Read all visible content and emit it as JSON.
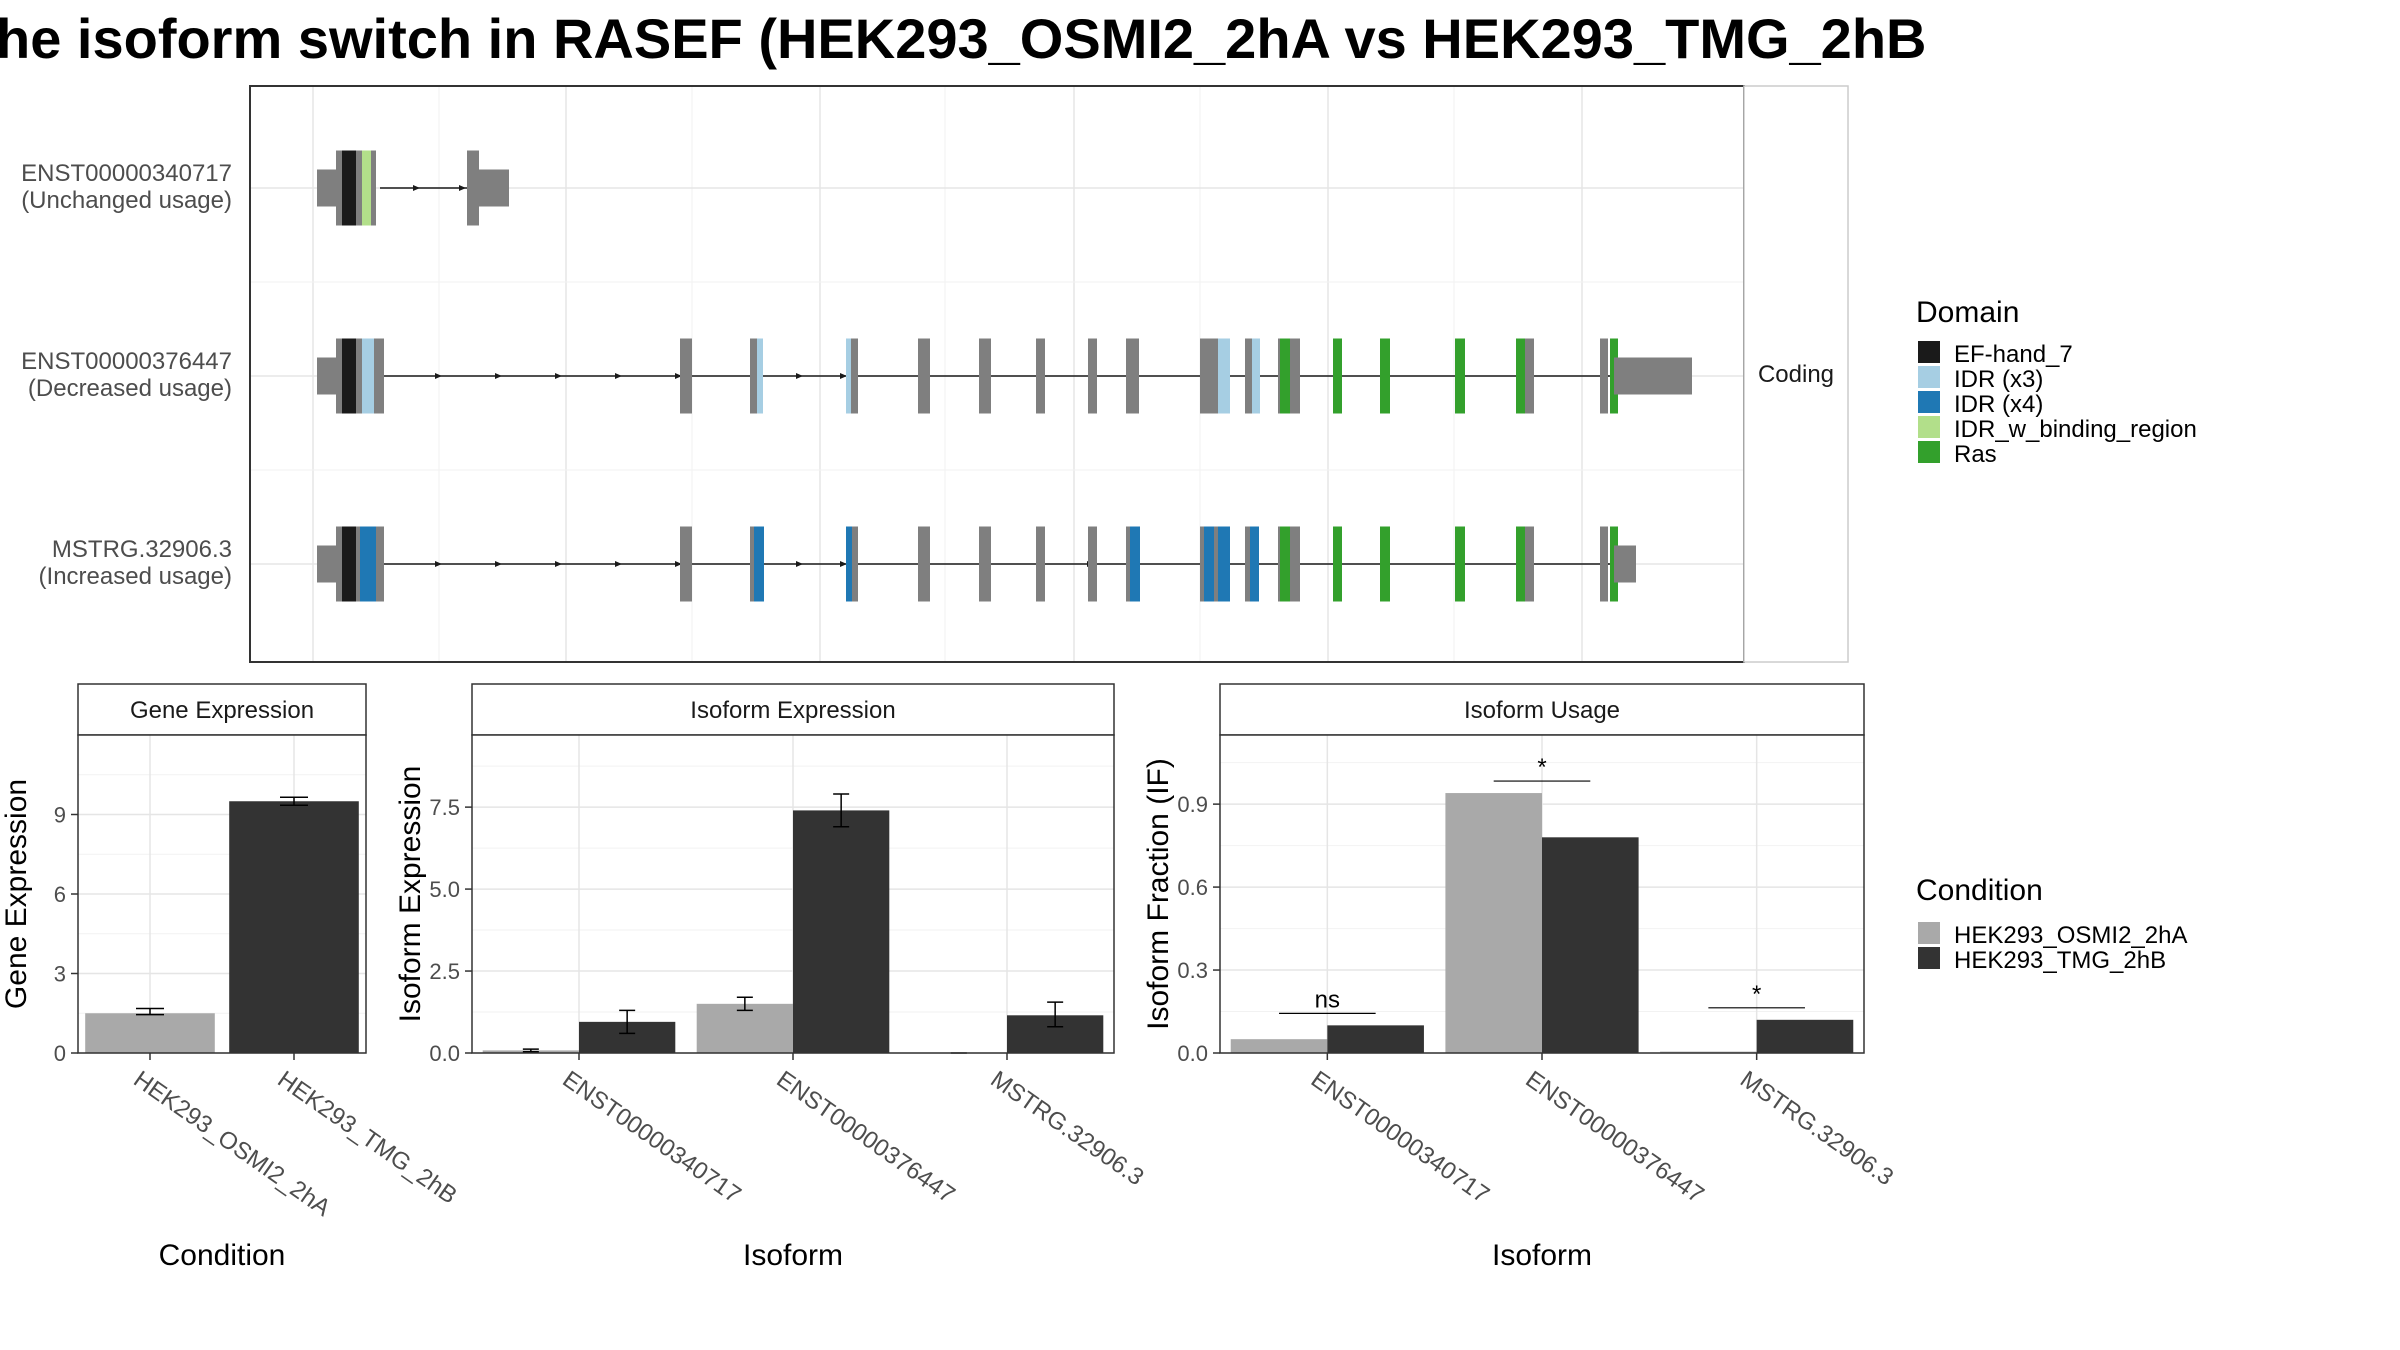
{
  "title": "he isoform switch in RASEF (HEK293_OSMI2_2hA vs HEK293_TMG_2hB",
  "colors": {
    "EF-hand_7": "#1a1a1a",
    "IDR (x3)": "#a6cee3",
    "IDR (x4)": "#1f78b4",
    "IDR_w_binding_region": "#b2df8a",
    "Ras": "#33a02c",
    "exon": "#7f7f7f",
    "cond1": "#a9a9a9",
    "cond2": "#333333"
  },
  "structure": {
    "strip_label": "Coding",
    "transcripts": [
      {
        "id": "ENST00000340717",
        "usage": "(Unchanged usage)"
      },
      {
        "id": "ENST00000376447",
        "usage": "(Decreased usage)"
      },
      {
        "id": "MSTRG.32906.3",
        "usage": "(Increased usage)"
      }
    ]
  },
  "legend_domain": {
    "title": "Domain",
    "items": [
      "EF-hand_7",
      "IDR (x3)",
      "IDR (x4)",
      "IDR_w_binding_region",
      "Ras"
    ]
  },
  "legend_condition": {
    "title": "Condition",
    "items": [
      "HEK293_OSMI2_2hA",
      "HEK293_TMG_2hB"
    ]
  },
  "chart_data": [
    {
      "type": "bar",
      "strip": "Gene Expression",
      "xlabel": "Condition",
      "ylabel": "Gene Expression",
      "categories": [
        "HEK293_OSMI2_2hA",
        "HEK293_TMG_2hB"
      ],
      "values": [
        1.5,
        9.5
      ],
      "errors": [
        [
          1.45,
          1.68
        ],
        [
          9.35,
          9.65
        ]
      ],
      "yticks": [
        "0",
        "3",
        "6",
        "9"
      ],
      "ylim": [
        0,
        12
      ]
    },
    {
      "type": "bar",
      "strip": "Isoform Expression",
      "xlabel": "Isoform",
      "ylabel": "Isoform Expression",
      "categories": [
        "ENST00000340717",
        "ENST00000376447",
        "MSTRG.32906.3"
      ],
      "series": [
        {
          "name": "HEK293_OSMI2_2hA",
          "values": [
            0.08,
            1.5,
            0.0
          ],
          "errors": [
            [
              0.04,
              0.12
            ],
            [
              1.3,
              1.7
            ],
            [
              0.0,
              0.0
            ]
          ]
        },
        {
          "name": "HEK293_TMG_2hB",
          "values": [
            0.95,
            7.4,
            1.15
          ],
          "errors": [
            [
              0.6,
              1.3
            ],
            [
              6.9,
              7.9
            ],
            [
              0.8,
              1.55
            ]
          ]
        }
      ],
      "yticks": [
        "0.0",
        "2.5",
        "5.0",
        "7.5"
      ],
      "ylim": [
        0,
        9.7
      ]
    },
    {
      "type": "bar",
      "strip": "Isoform Usage",
      "xlabel": "Isoform",
      "ylabel": "Isoform Fraction (IF)",
      "categories": [
        "ENST00000340717",
        "ENST00000376447",
        "MSTRG.32906.3"
      ],
      "series": [
        {
          "name": "HEK293_OSMI2_2hA",
          "values": [
            0.05,
            0.94,
            0.005
          ]
        },
        {
          "name": "HEK293_TMG_2hB",
          "values": [
            0.1,
            0.78,
            0.12
          ]
        }
      ],
      "significance": [
        "ns",
        "*",
        "*"
      ],
      "yticks": [
        "0.0",
        "0.3",
        "0.6",
        "0.9"
      ],
      "ylim": [
        0,
        1.15
      ]
    }
  ]
}
